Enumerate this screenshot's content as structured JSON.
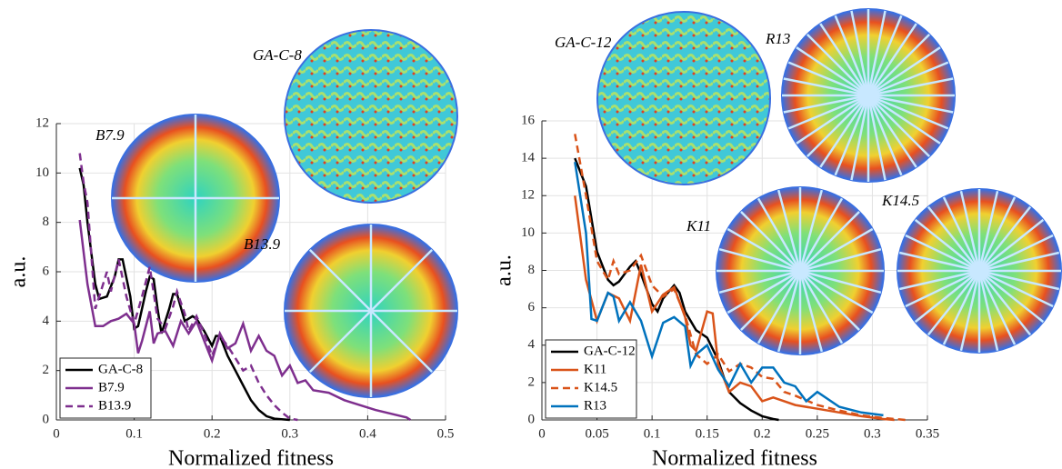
{
  "chart_data": [
    {
      "type": "line",
      "xlabel": "Normalized fitness",
      "ylabel": "a.u.",
      "xlim": [
        0,
        0.5
      ],
      "xticks": [
        0,
        0.1,
        0.2,
        0.3,
        0.4,
        0.5
      ],
      "ylim": [
        0,
        12
      ],
      "yticks": [
        0,
        2,
        4,
        6,
        8,
        10,
        12
      ],
      "grid": true,
      "legend": "lower left",
      "annotations": [
        "B7.9",
        "GA-C-8",
        "B13.9"
      ],
      "series": [
        {
          "name": "GA-C-8",
          "color": "#000000",
          "line_style": "solid",
          "x": [
            0.03,
            0.035,
            0.04,
            0.05,
            0.055,
            0.065,
            0.075,
            0.08,
            0.085,
            0.095,
            0.1,
            0.105,
            0.115,
            0.12,
            0.125,
            0.13,
            0.135,
            0.145,
            0.15,
            0.155,
            0.165,
            0.175,
            0.18,
            0.19,
            0.2,
            0.205,
            0.21,
            0.22,
            0.23,
            0.24,
            0.25,
            0.26,
            0.27,
            0.28,
            0.3
          ],
          "values": [
            10.2,
            9.5,
            8,
            5.5,
            4.9,
            5,
            5.8,
            6.5,
            6.5,
            5,
            3.7,
            3.8,
            5.2,
            5.8,
            5.7,
            4.5,
            3.5,
            4.5,
            5.1,
            5.1,
            4,
            4.2,
            4.1,
            3.6,
            3,
            3.4,
            3.4,
            2.6,
            2,
            1.4,
            0.8,
            0.4,
            0.15,
            0.05,
            0
          ]
        },
        {
          "name": "B7.9",
          "color": "#7e2f8e",
          "line_style": "solid",
          "x": [
            0.03,
            0.04,
            0.05,
            0.06,
            0.07,
            0.08,
            0.09,
            0.1,
            0.105,
            0.11,
            0.12,
            0.125,
            0.13,
            0.14,
            0.15,
            0.16,
            0.17,
            0.18,
            0.19,
            0.2,
            0.21,
            0.22,
            0.23,
            0.24,
            0.25,
            0.26,
            0.27,
            0.28,
            0.29,
            0.3,
            0.31,
            0.32,
            0.33,
            0.35,
            0.37,
            0.39,
            0.41,
            0.43,
            0.45,
            0.455
          ],
          "values": [
            8.1,
            5.5,
            3.8,
            3.8,
            4,
            4.1,
            4.3,
            3.9,
            2.7,
            3.2,
            4.4,
            3.1,
            3.5,
            3.6,
            3,
            4,
            3.5,
            4,
            3.2,
            2.4,
            3.5,
            2.9,
            3.1,
            3.9,
            2.8,
            3.4,
            2.8,
            2.6,
            1.8,
            2.2,
            1.5,
            1.6,
            1.2,
            1.1,
            0.8,
            0.6,
            0.4,
            0.25,
            0.1,
            0
          ]
        },
        {
          "name": "B13.9",
          "color": "#7e2f8e",
          "line_style": "dashed",
          "x": [
            0.03,
            0.035,
            0.04,
            0.05,
            0.06,
            0.065,
            0.07,
            0.08,
            0.09,
            0.1,
            0.11,
            0.12,
            0.13,
            0.14,
            0.15,
            0.155,
            0.165,
            0.17,
            0.18,
            0.19,
            0.2,
            0.21,
            0.22,
            0.23,
            0.24,
            0.25,
            0.26,
            0.27,
            0.28,
            0.29,
            0.3,
            0.31
          ],
          "values": [
            10.8,
            9.6,
            8.8,
            4.5,
            5.5,
            6,
            5.2,
            6.5,
            5,
            3.9,
            5,
            6.2,
            4.1,
            3.7,
            4.6,
            5.2,
            4.3,
            3.6,
            4.2,
            3.5,
            2.6,
            3.4,
            3,
            2.5,
            2,
            2.2,
            1.5,
            1,
            0.6,
            0.3,
            0.05,
            0
          ]
        }
      ]
    },
    {
      "type": "line",
      "xlabel": "Normalized fitness",
      "ylabel": "a.u.",
      "xlim": [
        0,
        0.35
      ],
      "xticks": [
        0,
        0.05,
        0.1,
        0.15,
        0.2,
        0.25,
        0.3,
        0.35
      ],
      "ylim": [
        0,
        16
      ],
      "yticks": [
        0,
        2,
        4,
        6,
        8,
        10,
        12,
        14,
        16
      ],
      "grid": true,
      "legend": "lower left",
      "annotations": [
        "GA-C-12",
        "R13",
        "K11",
        "K14.5"
      ],
      "series": [
        {
          "name": "GA-C-12",
          "color": "#000000",
          "line_style": "solid",
          "x": [
            0.03,
            0.04,
            0.05,
            0.06,
            0.065,
            0.07,
            0.08,
            0.085,
            0.09,
            0.1,
            0.105,
            0.11,
            0.12,
            0.125,
            0.13,
            0.14,
            0.15,
            0.155,
            0.16,
            0.165,
            0.17,
            0.18,
            0.19,
            0.2,
            0.21,
            0.215
          ],
          "values": [
            14,
            12.5,
            9,
            7.5,
            7.2,
            7.4,
            8.2,
            8.5,
            7.8,
            6.2,
            5.8,
            6.5,
            7.2,
            6.8,
            5.8,
            4.8,
            4.4,
            3.8,
            3.2,
            2.3,
            1.5,
            0.9,
            0.5,
            0.2,
            0.05,
            0
          ]
        },
        {
          "name": "K11",
          "color": "#d95319",
          "line_style": "solid",
          "x": [
            0.03,
            0.04,
            0.05,
            0.06,
            0.07,
            0.08,
            0.09,
            0.1,
            0.11,
            0.12,
            0.13,
            0.135,
            0.14,
            0.15,
            0.155,
            0.16,
            0.17,
            0.18,
            0.19,
            0.2,
            0.21,
            0.22,
            0.23,
            0.25,
            0.27,
            0.29,
            0.31,
            0.32
          ],
          "values": [
            12,
            7.5,
            5.3,
            6.8,
            6.5,
            5.3,
            8.3,
            5.8,
            6.7,
            7.1,
            5.5,
            4,
            3.7,
            5.8,
            5.7,
            3,
            1.5,
            2,
            1.8,
            1,
            1.2,
            1,
            0.8,
            0.6,
            0.4,
            0.2,
            0.05,
            0
          ]
        },
        {
          "name": "K14.5",
          "color": "#d95319",
          "line_style": "dashed",
          "x": [
            0.03,
            0.04,
            0.05,
            0.06,
            0.065,
            0.07,
            0.08,
            0.09,
            0.1,
            0.11,
            0.12,
            0.13,
            0.14,
            0.15,
            0.16,
            0.17,
            0.18,
            0.19,
            0.2,
            0.21,
            0.22,
            0.23,
            0.25,
            0.27,
            0.29,
            0.31,
            0.33
          ],
          "values": [
            15.3,
            12,
            8.5,
            7.5,
            8.5,
            7.8,
            8,
            8.8,
            7.2,
            6.6,
            7,
            5.6,
            3.5,
            3,
            3.5,
            2.6,
            3,
            2.8,
            2.3,
            2.2,
            1.5,
            1.3,
            0.8,
            0.5,
            0.25,
            0.1,
            0
          ]
        },
        {
          "name": "R13",
          "color": "#0072bd",
          "line_style": "solid",
          "x": [
            0.03,
            0.04,
            0.045,
            0.05,
            0.06,
            0.065,
            0.07,
            0.08,
            0.09,
            0.1,
            0.11,
            0.12,
            0.13,
            0.135,
            0.14,
            0.15,
            0.16,
            0.17,
            0.18,
            0.19,
            0.2,
            0.21,
            0.22,
            0.23,
            0.24,
            0.25,
            0.27,
            0.29,
            0.31
          ],
          "values": [
            13.8,
            10,
            5.4,
            5.3,
            6.8,
            6.6,
            5.3,
            6.3,
            5.3,
            3.4,
            5.2,
            5.5,
            5,
            2.9,
            3.5,
            4,
            2.7,
            1.8,
            3,
            2,
            2.8,
            2.8,
            2,
            1.8,
            1,
            1.5,
            0.7,
            0.4,
            0.25
          ]
        }
      ]
    }
  ]
}
